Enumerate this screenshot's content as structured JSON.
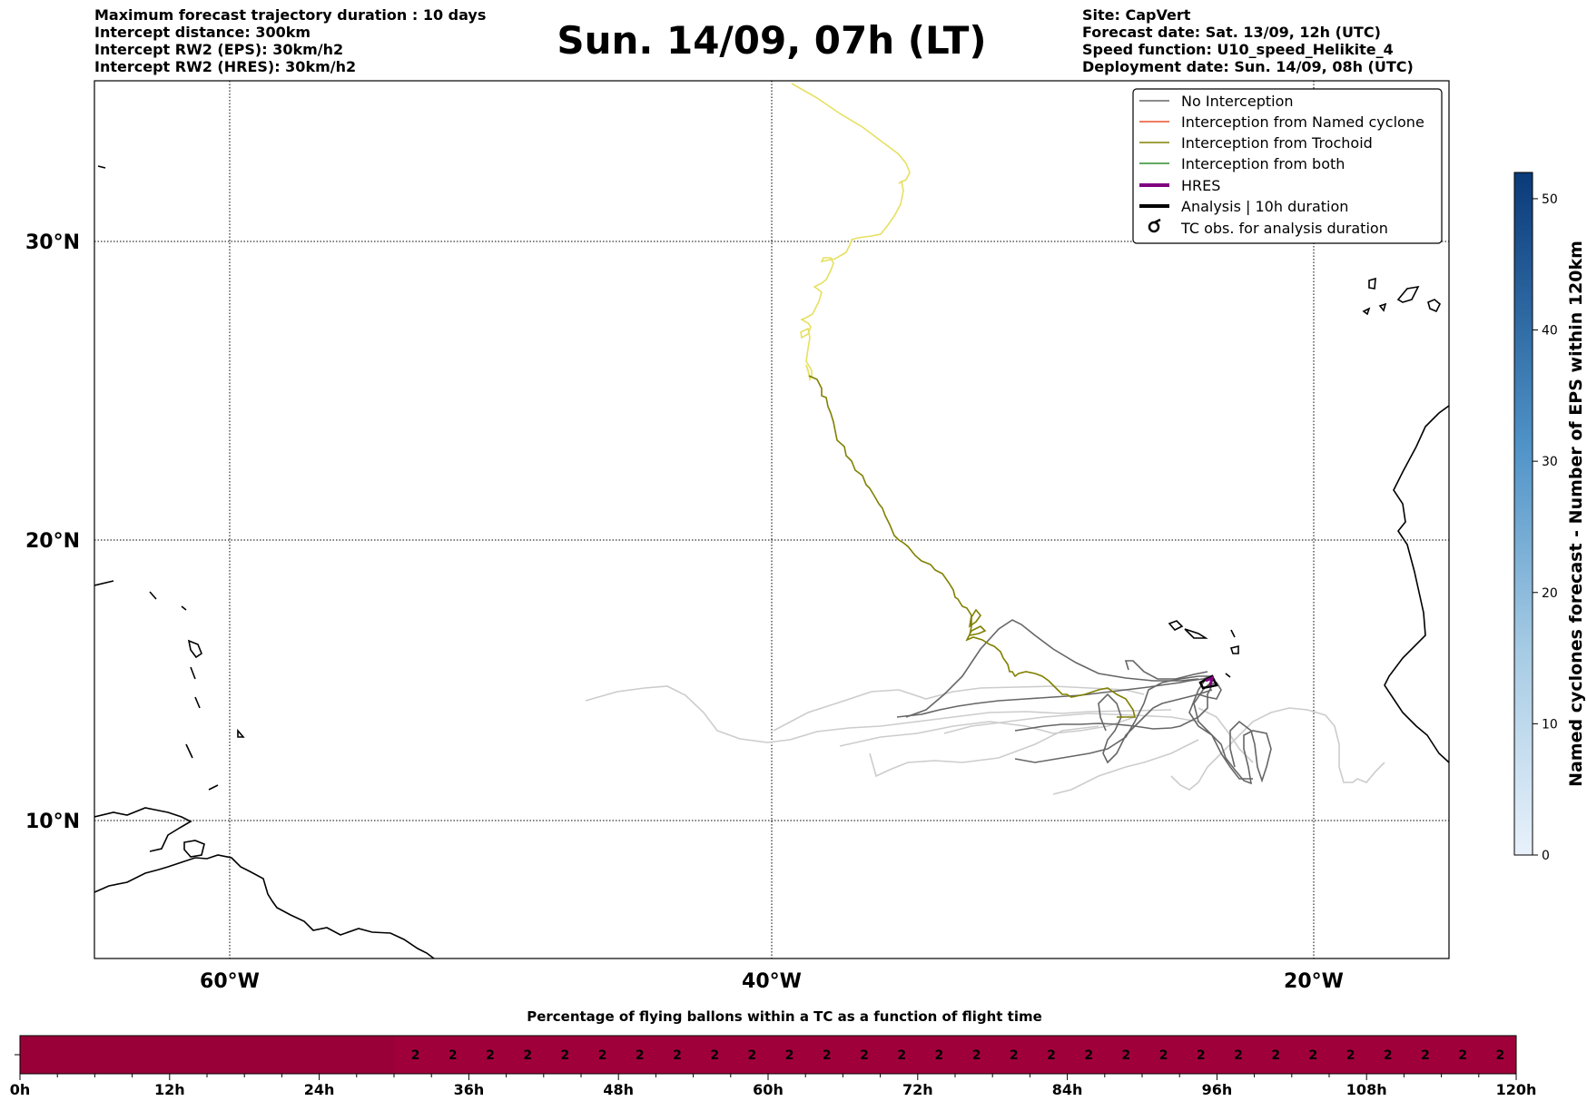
{
  "header_left": [
    "Maximum forecast trajectory duration : 10 days",
    "Intercept distance: 300km",
    "Intercept RW2 (EPS):  30km/h2",
    "Intercept RW2 (HRES): 30km/h2"
  ],
  "title": "Sun. 14/09, 07h (LT)",
  "header_right": [
    "Site: CapVert",
    "Forecast date: Sat. 13/09, 12h (UTC)",
    "Speed function: U10_speed_Helikite_4",
    "Deployment date: Sun. 14/09, 08h (UTC)"
  ],
  "map": {
    "lat_labels": [
      "30°N",
      "20°N",
      "10°N"
    ],
    "lon_labels": [
      "60°W",
      "40°W",
      "20°W"
    ],
    "colors": {
      "no_interception": "#666666",
      "named_cyclone": "#e8502a",
      "trochoid": "#808000",
      "both": "#2e8b2e",
      "hres": "#800080",
      "analysis": "#000000",
      "light_track": "#cccccc",
      "yellow_track": "#e6e060"
    }
  },
  "legend": [
    {
      "label": "No Interception",
      "icon": "gray-line"
    },
    {
      "label": "Interception from Named cyclone",
      "icon": "orange-line"
    },
    {
      "label": "Interception from Trochoid",
      "icon": "olive-line"
    },
    {
      "label": "Interception from both",
      "icon": "green-line"
    },
    {
      "label": "HRES",
      "icon": "purple-thick-line"
    },
    {
      "label": "Analysis | 10h duration",
      "icon": "black-thick-line"
    },
    {
      "label": "TC obs. for analysis duration",
      "icon": "cyclone-symbol"
    }
  ],
  "colorbar": {
    "label": "Named cyclones forecast - Number of EPS within 120km",
    "ticks": [
      "0",
      "10",
      "20",
      "30",
      "40",
      "50"
    ],
    "min": 0,
    "max": 52
  },
  "bottom_bar": {
    "title": "Percentage of flying ballons within a TC as a function of flight time",
    "x_labels": [
      "0h",
      "12h",
      "24h",
      "36h",
      "48h",
      "60h",
      "72h",
      "84h",
      "96h",
      "108h",
      "120h"
    ],
    "cell_value": "2",
    "cells_start_hour": 30,
    "cell_step_hours": 3,
    "bar_color": "#a0003a"
  }
}
